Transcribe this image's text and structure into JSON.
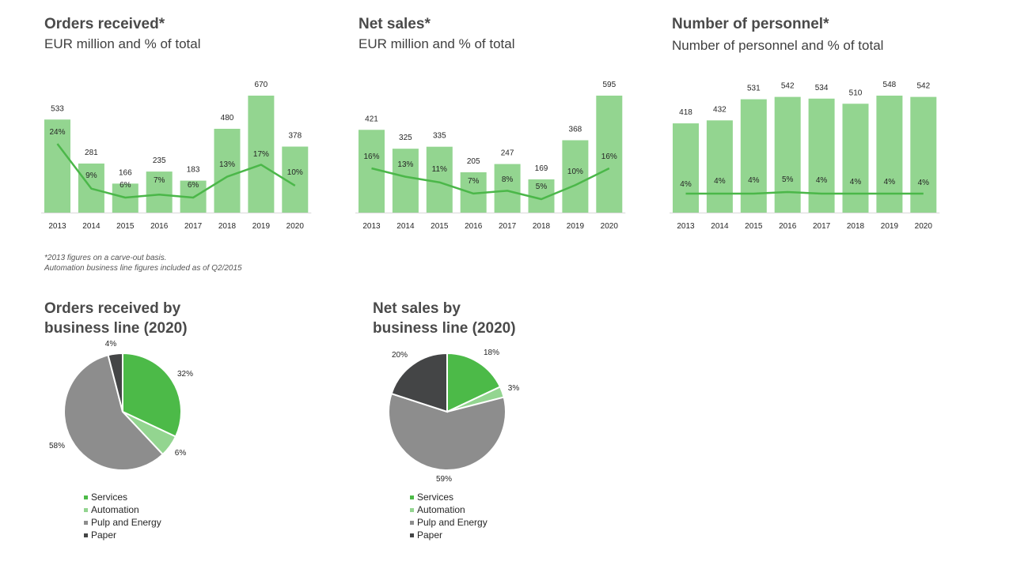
{
  "colors": {
    "bar": "#93d590",
    "line": "#4bb749",
    "axis": "#d9d9d9",
    "services": "#4cba48",
    "automation": "#93d590",
    "pulp_energy": "#8d8d8d",
    "paper": "#444546"
  },
  "footnote": {
    "line1": "*2013 figures on a carve-out basis.",
    "line2": "Automation business line figures included as of Q2/2015"
  },
  "chart_data": [
    {
      "type": "bar",
      "title": "Orders received*",
      "subtitle": "EUR million and % of total",
      "categories": [
        "2013",
        "2014",
        "2015",
        "2016",
        "2017",
        "2018",
        "2019",
        "2020"
      ],
      "series": [
        {
          "kind": "bar",
          "values": [
            533,
            281,
            166,
            235,
            183,
            480,
            670,
            378
          ]
        },
        {
          "kind": "line",
          "values": [
            24,
            9,
            6,
            7,
            6,
            13,
            17,
            10
          ],
          "labels": [
            "24%",
            "9%",
            "6%",
            "7%",
            "6%",
            "13%",
            "17%",
            "10%"
          ]
        }
      ],
      "ylim": [
        0,
        670
      ],
      "grid": false
    },
    {
      "type": "bar",
      "title": "Net sales*",
      "subtitle": "EUR million and % of total",
      "categories": [
        "2013",
        "2014",
        "2015",
        "2016",
        "2017",
        "2018",
        "2019",
        "2020"
      ],
      "series": [
        {
          "kind": "bar",
          "values": [
            421,
            325,
            335,
            205,
            247,
            169,
            368,
            595
          ]
        },
        {
          "kind": "line",
          "values": [
            16,
            13,
            11,
            7,
            8,
            5,
            10,
            16
          ],
          "labels": [
            "16%",
            "13%",
            "11%",
            "7%",
            "8%",
            "5%",
            "10%",
            "16%"
          ]
        }
      ],
      "ylim": [
        0,
        595
      ],
      "grid": false
    },
    {
      "type": "bar",
      "title": "Number of personnel*",
      "subtitle": "Number of personnel and % of total",
      "categories": [
        "2013",
        "2014",
        "2015",
        "2016",
        "2017",
        "2018",
        "2019",
        "2020"
      ],
      "series": [
        {
          "kind": "bar",
          "values": [
            418,
            432,
            531,
            542,
            534,
            510,
            548,
            542
          ]
        },
        {
          "kind": "line",
          "values": [
            4,
            4,
            4,
            5,
            4,
            4,
            4,
            4
          ],
          "labels": [
            "4%",
            "4%",
            "4%",
            "5%",
            "4%",
            "4%",
            "4%",
            "4%"
          ]
        }
      ],
      "ylim": [
        0,
        548
      ],
      "grid": false
    },
    {
      "type": "pie",
      "title_line1": "Orders received by",
      "title_line2": "business line (2020)",
      "slices": [
        {
          "name": "Services",
          "value": 32,
          "label": "32%",
          "color": "#4cba48"
        },
        {
          "name": "Automation",
          "value": 6,
          "label": "6%",
          "color": "#93d590"
        },
        {
          "name": "Pulp and Energy",
          "value": 58,
          "label": "58%",
          "color": "#8d8d8d"
        },
        {
          "name": "Paper",
          "value": 4,
          "label": "4%",
          "color": "#444546"
        }
      ],
      "legend": [
        "Services",
        "Automation",
        "Pulp and Energy",
        "Paper"
      ],
      "legend_position": "bottom"
    },
    {
      "type": "pie",
      "title_line1": "Net sales by",
      "title_line2": "business line (2020)",
      "slices": [
        {
          "name": "Services",
          "value": 18,
          "label": "18%",
          "color": "#4cba48"
        },
        {
          "name": "Automation",
          "value": 3,
          "label": "3%",
          "color": "#93d590"
        },
        {
          "name": "Pulp and Energy",
          "value": 59,
          "label": "59%",
          "color": "#8d8d8d"
        },
        {
          "name": "Paper",
          "value": 20,
          "label": "20%",
          "color": "#444546"
        }
      ],
      "legend": [
        "Services",
        "Automation",
        "Pulp and Energy",
        "Paper"
      ],
      "legend_position": "bottom"
    }
  ]
}
